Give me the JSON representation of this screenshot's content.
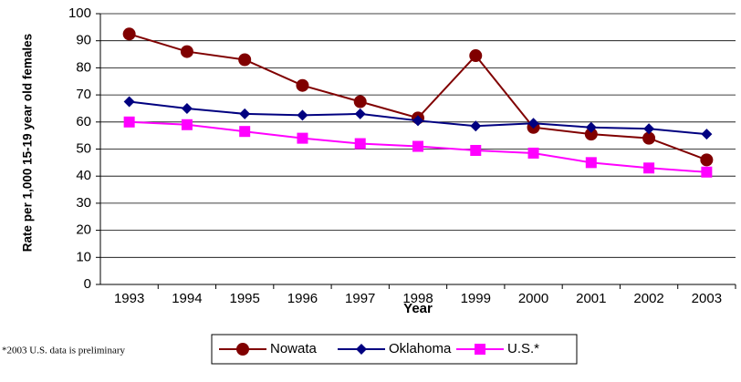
{
  "chart_data": {
    "type": "line",
    "ylabel": "Rate per 1,000 15-19 year old females",
    "xlabel": "Year",
    "categories": [
      "1993",
      "1994",
      "1995",
      "1996",
      "1997",
      "1998",
      "1999",
      "2000",
      "2001",
      "2002",
      "2003"
    ],
    "series": [
      {
        "name": "Nowata",
        "color": "#800000",
        "marker": "circle",
        "values": [
          92.5,
          86,
          83,
          73.5,
          67.5,
          61.5,
          84.5,
          58,
          55.5,
          54,
          46
        ]
      },
      {
        "name": "Oklahoma",
        "color": "#000080",
        "marker": "diamond",
        "values": [
          67.5,
          65,
          63,
          62.5,
          63,
          60.5,
          58.5,
          59.5,
          58,
          57.5,
          55.5
        ]
      },
      {
        "name": "U.S.*",
        "color": "#ff00ff",
        "marker": "square",
        "values": [
          60,
          59,
          56.5,
          54,
          52,
          51,
          49.5,
          48.5,
          45,
          43,
          41.5
        ]
      }
    ],
    "ylim": [
      0,
      100
    ],
    "yticks": [
      0,
      10,
      20,
      30,
      40,
      50,
      60,
      70,
      80,
      90,
      100
    ],
    "grid": true,
    "legend": "bottom",
    "note": "*2003 U.S. data is preliminary"
  }
}
